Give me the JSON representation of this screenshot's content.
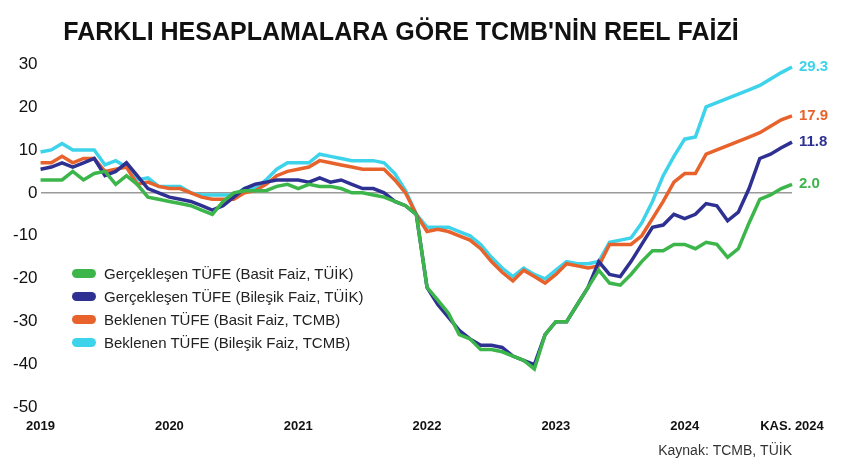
{
  "chart_data": {
    "type": "line",
    "title": "FARKLI HESAPLAMALARA GÖRE TCMB'NİN REEL FAİZİ",
    "source": "Kaynak: TCMB, TÜİK",
    "categories": [
      "2019",
      null,
      null,
      null,
      null,
      null,
      null,
      null,
      null,
      null,
      null,
      null,
      "2020",
      null,
      null,
      null,
      null,
      null,
      null,
      null,
      null,
      null,
      null,
      null,
      "2021",
      null,
      null,
      null,
      null,
      null,
      null,
      null,
      null,
      null,
      null,
      null,
      "2022",
      null,
      null,
      null,
      null,
      null,
      null,
      null,
      null,
      null,
      null,
      null,
      "2023",
      null,
      null,
      null,
      null,
      null,
      null,
      null,
      null,
      null,
      null,
      null,
      "2024",
      null,
      null,
      null,
      null,
      null,
      null,
      null,
      null,
      null,
      "KAS. 2024"
    ],
    "series": [
      {
        "name": "Gerçekleşen TÜFE (Basit Faiz, TÜİK)",
        "color": "#3cb54a",
        "values": [
          3,
          3,
          3,
          5,
          3,
          4.5,
          5,
          2,
          4,
          2,
          -1,
          -1.5,
          -2,
          -2.5,
          -3,
          -4,
          -5,
          -2,
          0,
          0.5,
          0.5,
          0.5,
          1.5,
          2,
          1,
          2,
          1.5,
          1.5,
          1,
          0,
          0,
          -0.5,
          -1,
          -2,
          -3,
          -5,
          -22,
          -25,
          -28,
          -33,
          -34,
          -36.5,
          -36.5,
          -37,
          -38,
          -39,
          -41,
          -33,
          -30,
          -30,
          -26,
          -22,
          -18,
          -21,
          -21.5,
          -19,
          -16,
          -13.5,
          -13.5,
          -12,
          -12,
          -13,
          -11.5,
          -12,
          -15,
          -13,
          -7,
          -1.5,
          -0.5,
          1,
          2
        ],
        "value_labels": [
          null,
          null,
          null,
          null,
          null,
          null,
          null,
          null,
          null,
          null,
          null,
          null,
          null,
          null,
          null,
          null,
          null,
          null,
          null,
          null,
          null,
          null,
          null,
          null,
          null,
          null,
          null,
          null,
          null,
          null,
          null,
          null,
          null,
          null,
          null,
          null,
          null,
          null,
          null,
          null,
          null,
          null,
          null,
          null,
          null,
          null,
          null,
          null,
          null,
          null,
          null,
          null,
          null,
          null,
          null,
          null,
          null,
          null,
          null,
          null,
          null,
          null,
          null,
          null,
          null,
          null,
          null,
          null,
          null,
          null,
          "2.0"
        ]
      },
      {
        "name": "Gerçekleşen TÜFE (Bileşik Faiz, TÜİK)",
        "color": "#2e3192",
        "values": [
          5.5,
          6,
          7,
          6,
          7,
          8,
          4,
          5,
          7,
          4,
          1,
          0,
          -1,
          -1.5,
          -2,
          -3,
          -4,
          -3,
          -1,
          1,
          2,
          2.5,
          3,
          3,
          3,
          2.5,
          3.5,
          2.5,
          3,
          2,
          1,
          1,
          0,
          -2,
          -3,
          -5,
          -22,
          -26,
          -29,
          -32,
          -34,
          -35.5,
          -35.5,
          -36,
          -38,
          -39,
          -40,
          -33,
          -30,
          -30,
          -26,
          -22,
          -16,
          -19,
          -19.5,
          -16,
          -12,
          -8,
          -7.5,
          -5,
          -6,
          -5,
          -2.5,
          -3,
          -6.5,
          -4.5,
          1,
          8,
          9,
          10.5,
          11.8
        ],
        "value_labels": [
          null,
          null,
          null,
          null,
          null,
          null,
          null,
          null,
          null,
          null,
          null,
          null,
          null,
          null,
          null,
          null,
          null,
          null,
          null,
          null,
          null,
          null,
          null,
          null,
          null,
          null,
          null,
          null,
          null,
          null,
          null,
          null,
          null,
          null,
          null,
          null,
          null,
          null,
          null,
          null,
          null,
          null,
          null,
          null,
          null,
          null,
          null,
          null,
          null,
          null,
          null,
          null,
          null,
          null,
          null,
          null,
          null,
          null,
          null,
          null,
          null,
          null,
          null,
          null,
          null,
          null,
          null,
          null,
          null,
          null,
          "11.8"
        ]
      },
      {
        "name": "Beklenen TÜFE (Basit Faiz, TCMB)",
        "color": "#e8622c",
        "values": [
          7,
          7,
          8.5,
          7,
          8,
          8,
          5,
          5.5,
          6,
          2,
          2.5,
          1.5,
          1,
          1,
          0,
          -1,
          -1.5,
          -1.5,
          -1.5,
          0,
          0.5,
          2,
          4,
          5,
          5.5,
          6,
          7.5,
          7,
          6.5,
          6,
          5.5,
          5.5,
          5.5,
          3,
          0,
          -5,
          -9,
          -8.5,
          -9,
          -10,
          -11,
          -13,
          -16,
          -18.5,
          -20.5,
          -18,
          -19.5,
          -21,
          -19,
          -16.5,
          -17,
          -17.5,
          -17,
          -12,
          -12,
          -12,
          -10,
          -6,
          -2,
          2.5,
          4.5,
          4.5,
          9,
          10,
          11,
          12,
          13,
          14,
          15.5,
          17,
          17.9
        ],
        "value_labels": [
          null,
          null,
          null,
          null,
          null,
          null,
          null,
          null,
          null,
          null,
          null,
          null,
          null,
          null,
          null,
          null,
          null,
          null,
          null,
          null,
          null,
          null,
          null,
          null,
          null,
          null,
          null,
          null,
          null,
          null,
          null,
          null,
          null,
          null,
          null,
          null,
          null,
          null,
          null,
          null,
          null,
          null,
          null,
          null,
          null,
          null,
          null,
          null,
          null,
          null,
          null,
          null,
          null,
          null,
          null,
          null,
          null,
          null,
          null,
          null,
          null,
          null,
          null,
          null,
          null,
          null,
          null,
          null,
          null,
          null,
          "17.9"
        ]
      },
      {
        "name": "Beklenen TÜFE (Bileşik Faiz, TCMB)",
        "color": "#3dd3ea",
        "values": [
          9.5,
          10,
          11.5,
          10,
          10,
          10,
          6.5,
          7.5,
          6,
          3,
          3.5,
          1.5,
          1.5,
          1.5,
          0,
          -0.5,
          -0.5,
          -0.5,
          -0.5,
          1,
          1,
          3,
          5.5,
          7,
          7,
          7,
          9,
          8.5,
          8,
          7.5,
          7.5,
          7.5,
          7,
          4.5,
          0.5,
          -5,
          -8,
          -8,
          -8,
          -9,
          -10,
          -12,
          -15,
          -17.5,
          -19.5,
          -17.5,
          -19,
          -20,
          -18,
          -16,
          -16.5,
          -16.5,
          -16,
          -11.5,
          -11,
          -10.5,
          -7,
          -2,
          4,
          8.5,
          12.5,
          13,
          20,
          21,
          22,
          23,
          24,
          25,
          26.5,
          28,
          29.3
        ],
        "value_labels": [
          null,
          null,
          null,
          null,
          null,
          null,
          null,
          null,
          null,
          null,
          null,
          null,
          null,
          null,
          null,
          null,
          null,
          null,
          null,
          null,
          null,
          null,
          null,
          null,
          null,
          null,
          null,
          null,
          null,
          null,
          null,
          null,
          null,
          null,
          null,
          null,
          null,
          null,
          null,
          null,
          null,
          null,
          null,
          null,
          null,
          null,
          null,
          null,
          null,
          null,
          null,
          null,
          null,
          null,
          null,
          null,
          null,
          null,
          null,
          null,
          null,
          null,
          null,
          null,
          null,
          null,
          null,
          null,
          null,
          null,
          "29.3"
        ]
      }
    ],
    "ylim": [
      -50,
      30
    ],
    "yticks": [
      -50,
      -40,
      -30,
      -20,
      -10,
      0,
      10,
      20,
      30
    ],
    "grid": false,
    "legend": "lower left"
  }
}
